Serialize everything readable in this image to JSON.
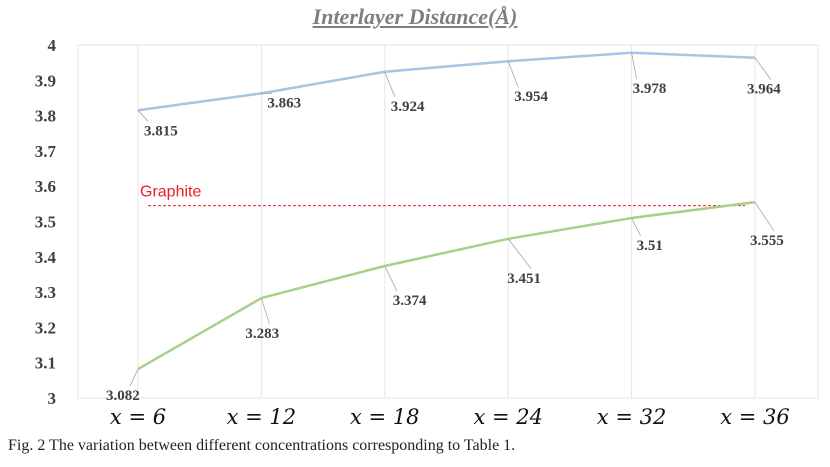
{
  "chart_data": {
    "type": "line",
    "title": "Interlayer Distance(Å)",
    "categories": [
      "x = 6",
      "x = 12",
      "x = 18",
      "x = 24",
      "x = 32",
      "x = 36"
    ],
    "ylim": [
      3,
      4
    ],
    "yticks": [
      "3",
      "3.1",
      "3.2",
      "3.3",
      "3.4",
      "3.5",
      "3.6",
      "3.7",
      "3.8",
      "3.9",
      "4"
    ],
    "grid": "vertical",
    "series": [
      {
        "values": [
          3.815,
          3.863,
          3.924,
          3.954,
          3.978,
          3.964
        ],
        "labels": [
          "3.815",
          "3.863",
          "3.924",
          "3.954",
          "3.978",
          "3.964"
        ],
        "color": "#a9c4e2"
      },
      {
        "values": [
          3.082,
          3.283,
          3.374,
          3.451,
          3.51,
          3.555
        ],
        "labels": [
          "3.082",
          "3.283",
          "3.374",
          "3.451",
          "3.51",
          "3.555"
        ],
        "color": "#a6d18a"
      }
    ],
    "reference_line": {
      "name": "Graphite",
      "value": 3.545,
      "color": "#e8202a",
      "style": "dashed"
    }
  },
  "caption": "Fig. 2  The variation between different concentrations corresponding to Table 1."
}
